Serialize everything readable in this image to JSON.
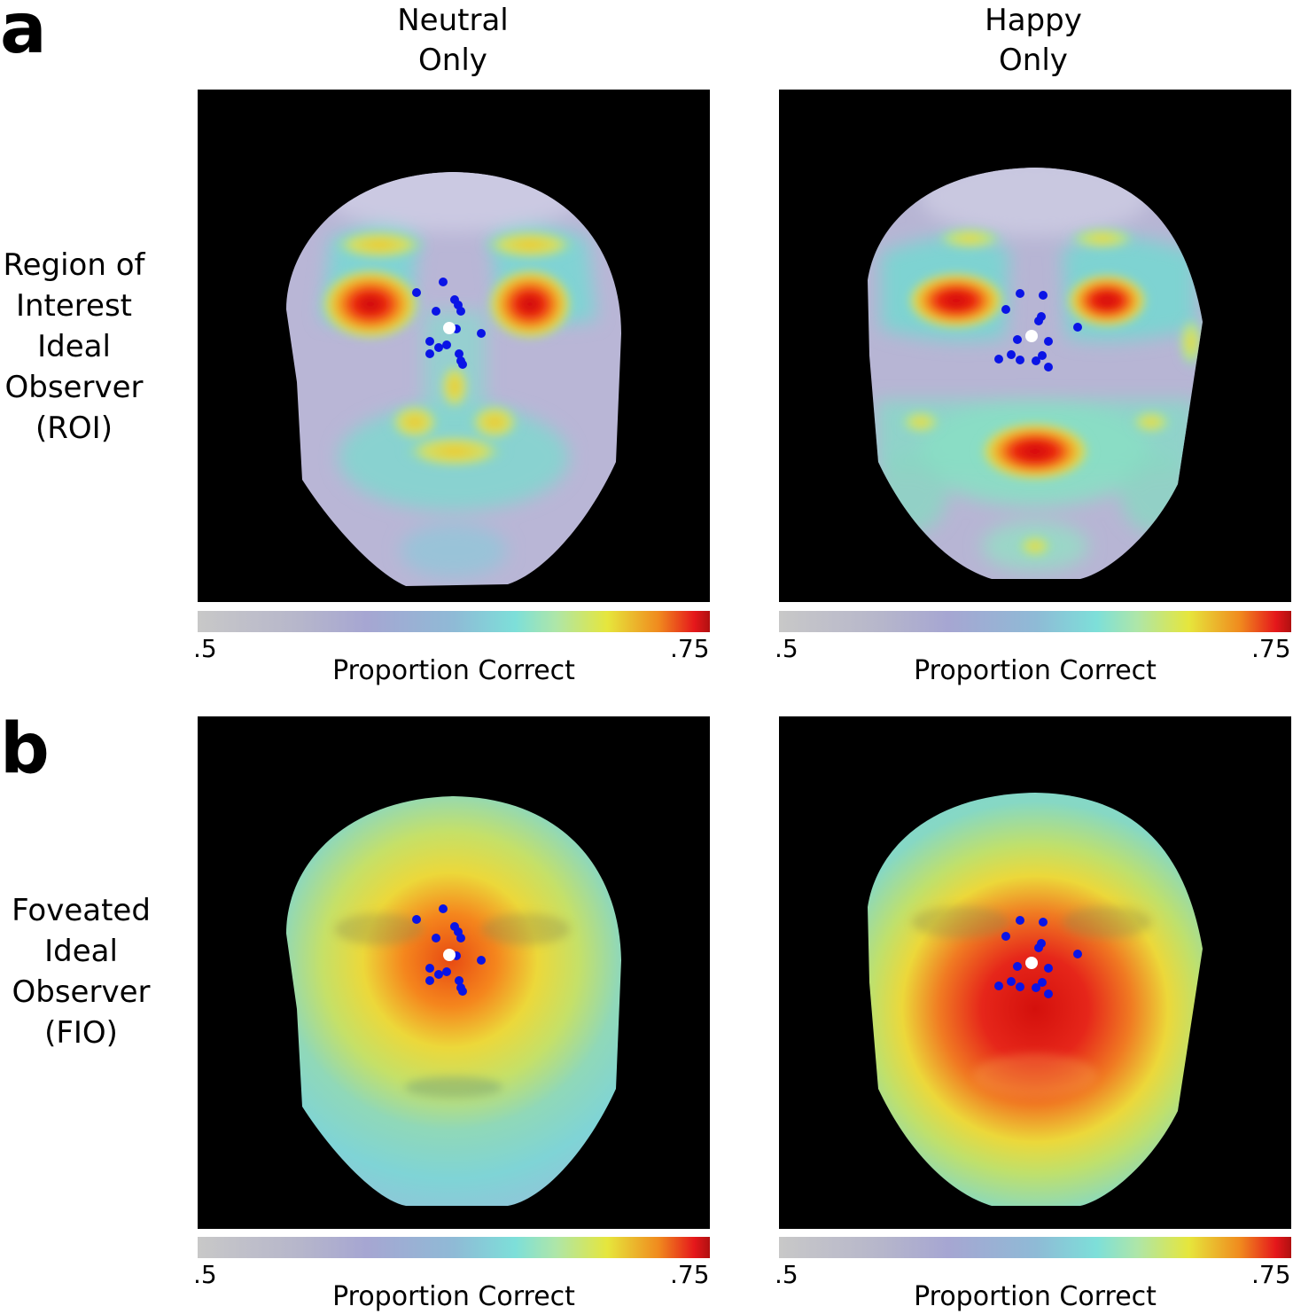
{
  "panels": {
    "a": "a",
    "b": "b"
  },
  "columns": {
    "left": {
      "line1": "Neutral",
      "line2": "Only"
    },
    "right": {
      "line1": "Happy",
      "line2": "Only"
    }
  },
  "rows": {
    "roi": {
      "lines": [
        "Region of",
        "Interest",
        "Ideal",
        "Observer",
        "(ROI)"
      ]
    },
    "fio": {
      "lines": [
        "Foveated",
        "Ideal",
        "Observer",
        "(FIO)"
      ]
    }
  },
  "colorbar": {
    "min_label": ".5",
    "max_label": ".75",
    "label": "Proportion Correct",
    "min_value": 0.5,
    "max_value": 0.75
  },
  "colors": {
    "fixation_dots": "#0a14e6",
    "center_marker": "#ffffff",
    "map_background": "#000000"
  },
  "fixations": {
    "neutral": [
      [
        -37,
        -40
      ],
      [
        -7,
        -52
      ],
      [
        -15,
        -19
      ],
      [
        6,
        -32
      ],
      [
        10,
        -26
      ],
      [
        13,
        -19
      ],
      [
        8,
        1
      ],
      [
        36,
        6
      ],
      [
        -22,
        15
      ],
      [
        -12,
        22
      ],
      [
        -3,
        19
      ],
      [
        -22,
        29
      ],
      [
        11,
        29
      ],
      [
        13,
        37
      ],
      [
        15,
        41
      ]
    ],
    "happy": [
      [
        -13,
        -48
      ],
      [
        13,
        -46
      ],
      [
        -29,
        -30
      ],
      [
        11,
        -22
      ],
      [
        8,
        -17
      ],
      [
        -16,
        4
      ],
      [
        19,
        6
      ],
      [
        52,
        -10
      ],
      [
        -23,
        21
      ],
      [
        -37,
        26
      ],
      [
        -13,
        27
      ],
      [
        5,
        28
      ],
      [
        12,
        22
      ],
      [
        19,
        35
      ]
    ]
  },
  "centers": {
    "neutral": [
      0,
      0
    ],
    "happy": [
      0,
      0
    ]
  }
}
